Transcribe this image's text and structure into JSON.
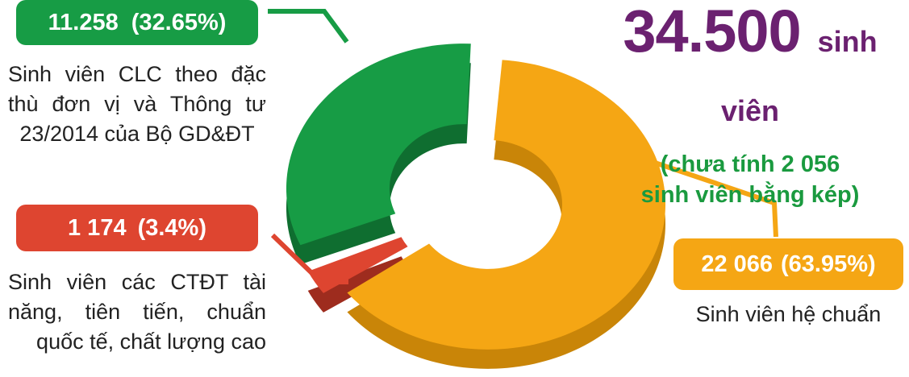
{
  "chart_data": {
    "type": "pie",
    "title": "34.500",
    "title_unit": "sinh viên",
    "subtitle": "(chưa tính 2 056\nsinh viên bằng kép)",
    "slices": [
      {
        "value_label": "11.258",
        "percent_label": "(32.65%)",
        "value": 11258,
        "percent": 32.65,
        "label": "Sinh viên CLC theo đặc thù đơn vị và Thông tư 23/2014 của Bộ GD&ĐT",
        "color": "#179c45"
      },
      {
        "value_label": "1 174",
        "percent_label": "(3.4%)",
        "value": 1174,
        "percent": 3.4,
        "label": "Sinh viên các CTĐT tài năng, tiên tiến, chuẩn quốc tế, chất lượng cao",
        "color": "#de4530"
      },
      {
        "value_label": "22 066",
        "percent_label": "(63.95%)",
        "value": 22066,
        "percent": 63.95,
        "label": "Sinh viên hệ chuẩn",
        "color": "#f5a614"
      }
    ]
  },
  "labels": {
    "green_lines": [
      "Sinh viên CLC theo đặc",
      "thù đơn vị và Thông tư",
      "23/2014 của Bộ GD&ĐT"
    ],
    "red_lines": [
      "Sinh viên các CTĐT tài",
      "năng, tiên tiến, chuẩn",
      "quốc tế, chất lượng cao"
    ],
    "orange_lines": [
      "Sinh viên hệ chuẩn"
    ],
    "note_lines": [
      "(chưa tính 2 056",
      "sinh viên bằng kép)"
    ]
  },
  "colors": {
    "green": "#179c45",
    "green_dark": "#0f6e30",
    "red": "#de4530",
    "red_dark": "#9e2c1e",
    "orange": "#f5a614",
    "orange_dark": "#c98508",
    "purple": "#6b2170"
  }
}
